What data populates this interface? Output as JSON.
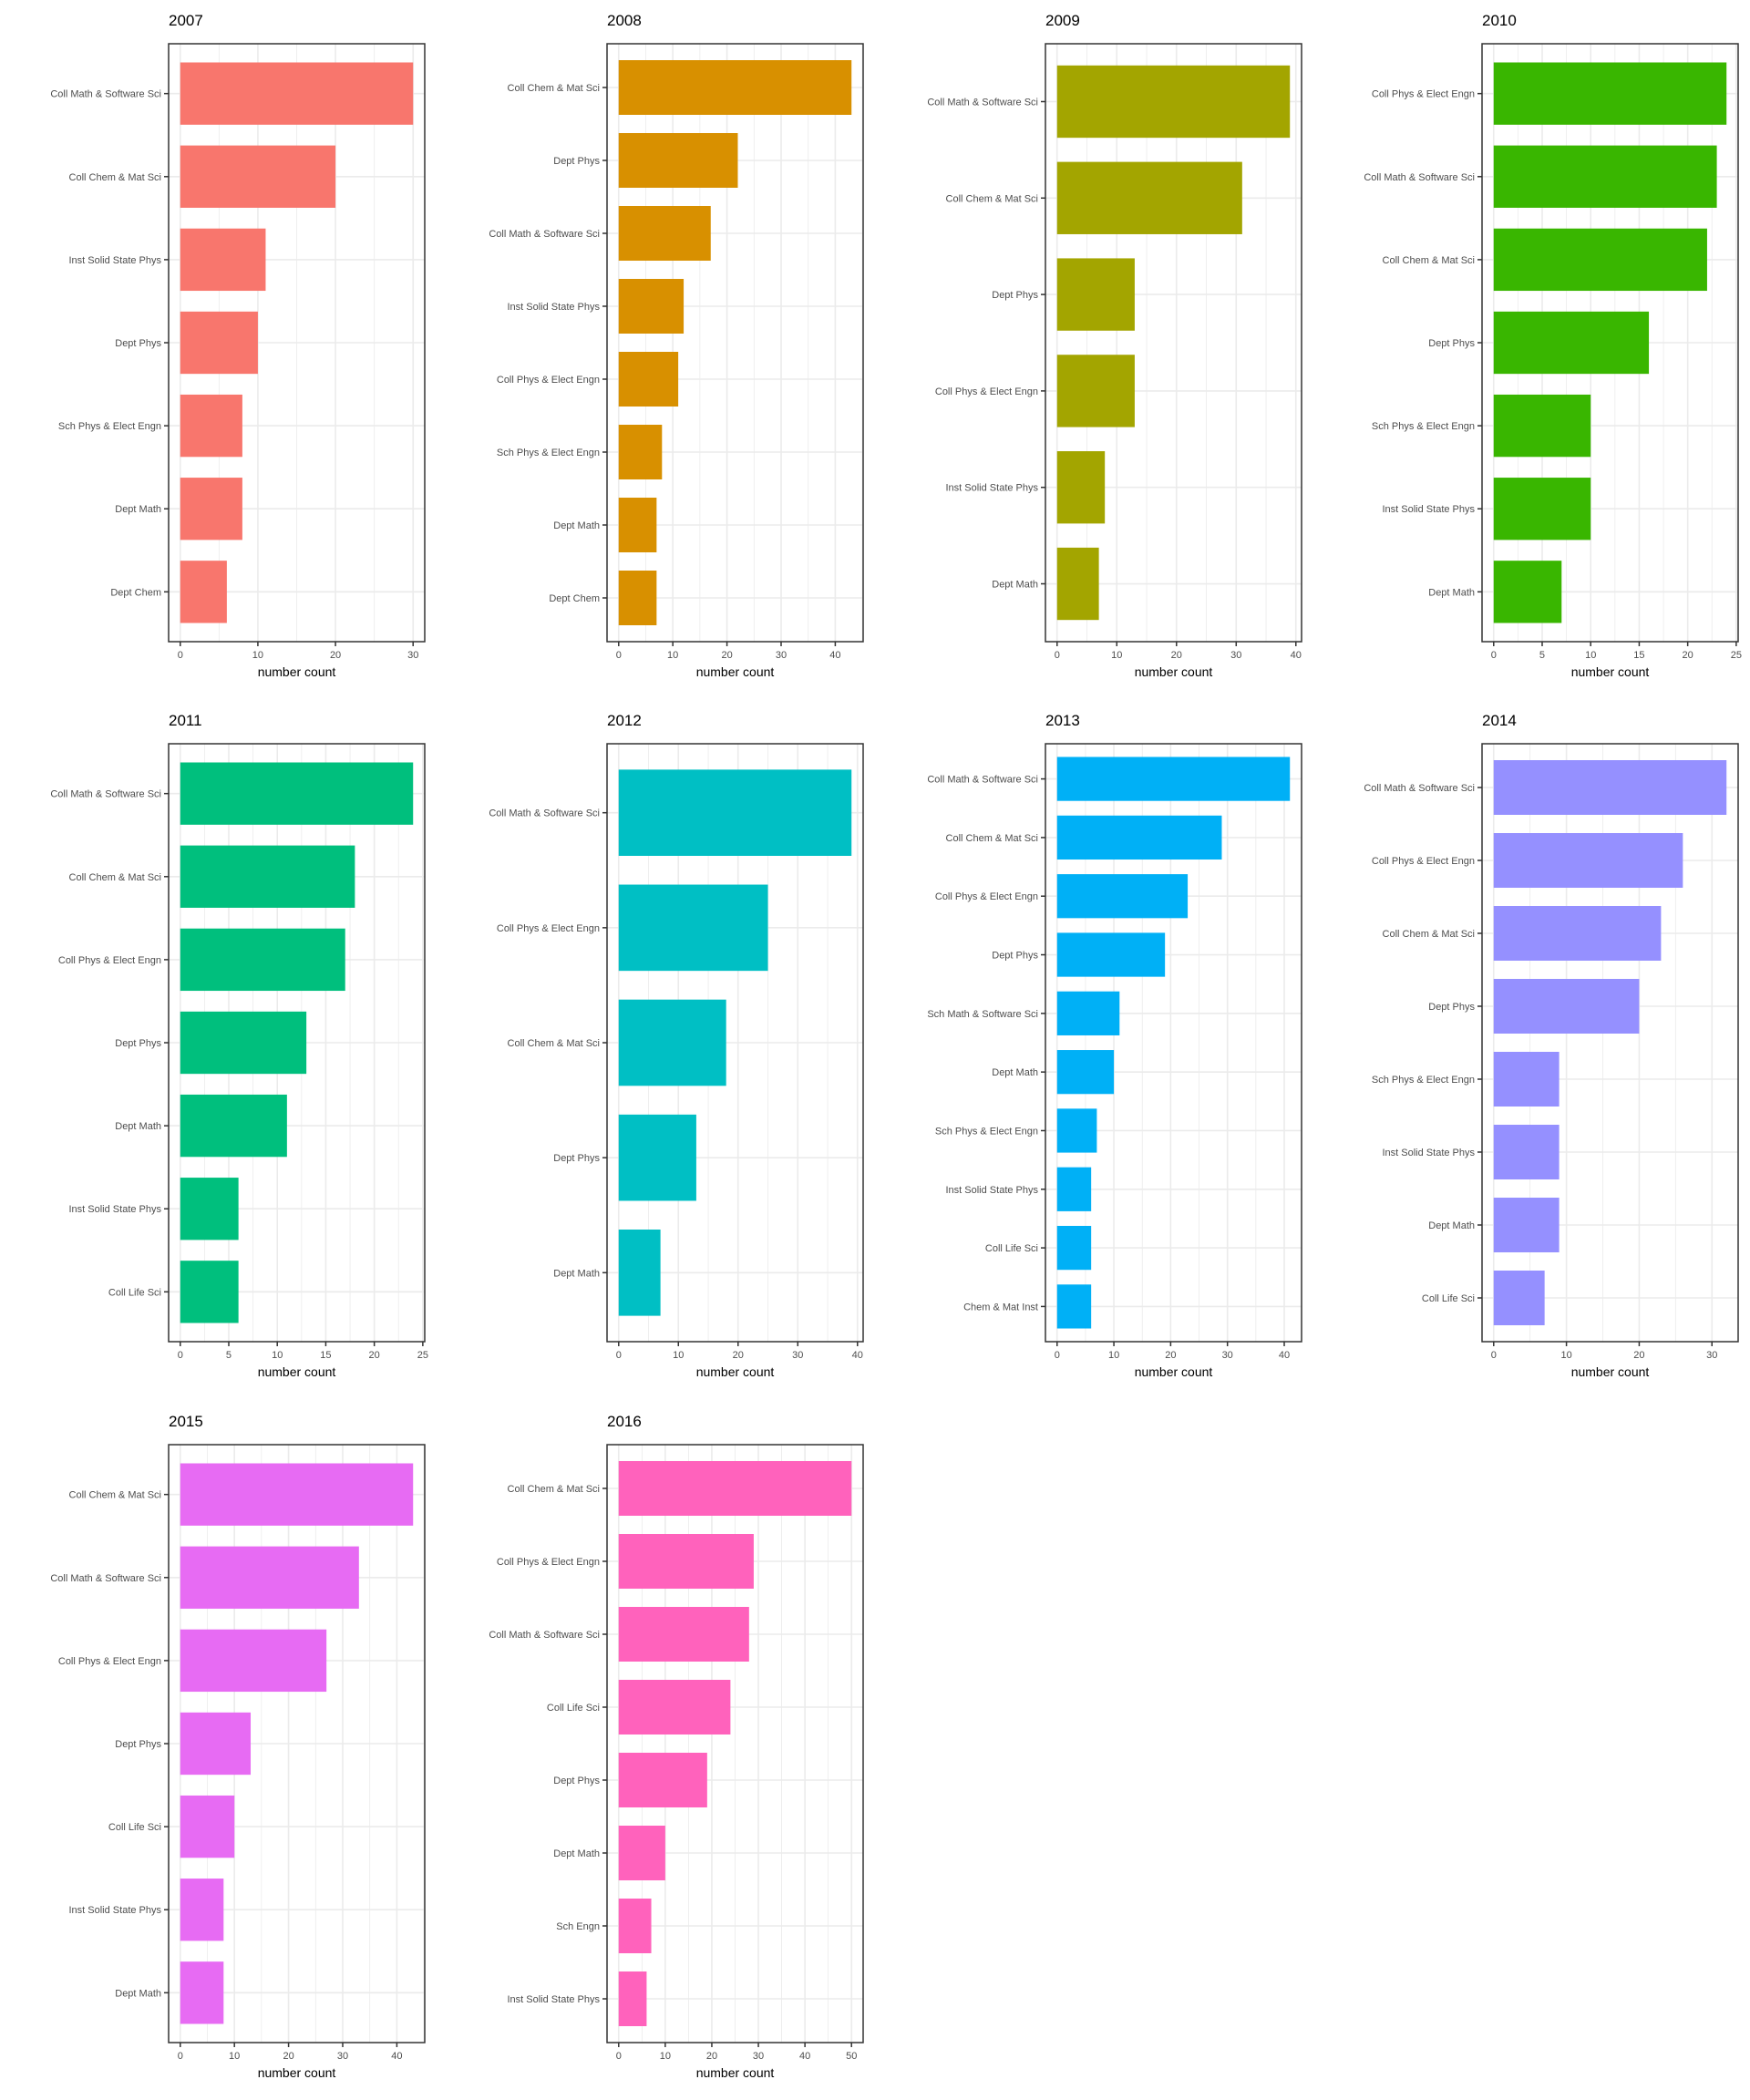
{
  "chart_data": [
    {
      "type": "bar",
      "orientation": "horizontal",
      "title": "2007",
      "xlabel": "number count",
      "color": "#F8766D",
      "xticks": [
        0,
        10,
        20,
        30
      ],
      "categories": [
        "Coll Math & Software Sci",
        "Coll Chem & Mat Sci",
        "Inst Solid State Phys",
        "Dept Phys",
        "Sch Phys & Elect Engn",
        "Dept Math",
        "Dept Chem"
      ],
      "values": [
        30,
        20,
        11,
        10,
        8,
        8,
        6
      ]
    },
    {
      "type": "bar",
      "orientation": "horizontal",
      "title": "2008",
      "xlabel": "number count",
      "color": "#D89000",
      "xticks": [
        0,
        10,
        20,
        30,
        40
      ],
      "categories": [
        "Coll Chem & Mat Sci",
        "Dept Phys",
        "Coll Math & Software Sci",
        "Inst Solid State Phys",
        "Coll Phys & Elect Engn",
        "Sch Phys & Elect Engn",
        "Dept Math",
        "Dept Chem"
      ],
      "values": [
        43,
        22,
        17,
        12,
        11,
        8,
        7,
        7
      ]
    },
    {
      "type": "bar",
      "orientation": "horizontal",
      "title": "2009",
      "xlabel": "number count",
      "color": "#A3A500",
      "xticks": [
        0,
        10,
        20,
        30,
        40
      ],
      "categories": [
        "Coll Math & Software Sci",
        "Coll Chem & Mat Sci",
        "Dept Phys",
        "Coll Phys & Elect Engn",
        "Inst Solid State Phys",
        "Dept Math"
      ],
      "values": [
        39,
        31,
        13,
        13,
        8,
        7
      ]
    },
    {
      "type": "bar",
      "orientation": "horizontal",
      "title": "2010",
      "xlabel": "number count",
      "color": "#39B600",
      "xticks": [
        0,
        5,
        10,
        15,
        20,
        25
      ],
      "categories": [
        "Coll Phys & Elect Engn",
        "Coll Math & Software Sci",
        "Coll Chem & Mat Sci",
        "Dept Phys",
        "Sch Phys & Elect Engn",
        "Inst Solid State Phys",
        "Dept Math"
      ],
      "values": [
        24,
        23,
        22,
        16,
        10,
        10,
        7
      ]
    },
    {
      "type": "bar",
      "orientation": "horizontal",
      "title": "2011",
      "xlabel": "number count",
      "color": "#00BF7D",
      "xticks": [
        0,
        5,
        10,
        15,
        20,
        25
      ],
      "categories": [
        "Coll Math & Software Sci",
        "Coll Chem & Mat Sci",
        "Coll Phys & Elect Engn",
        "Dept Phys",
        "Dept Math",
        "Inst Solid State Phys",
        "Coll Life Sci"
      ],
      "values": [
        24,
        18,
        17,
        13,
        11,
        6,
        6
      ]
    },
    {
      "type": "bar",
      "orientation": "horizontal",
      "title": "2012",
      "xlabel": "number count",
      "color": "#00BFC4",
      "xticks": [
        0,
        10,
        20,
        30,
        40
      ],
      "categories": [
        "Coll Math & Software Sci",
        "Coll Phys & Elect Engn",
        "Coll Chem & Mat Sci",
        "Dept Phys",
        "Dept Math"
      ],
      "values": [
        39,
        25,
        18,
        13,
        7
      ]
    },
    {
      "type": "bar",
      "orientation": "horizontal",
      "title": "2013",
      "xlabel": "number count",
      "color": "#00B0F6",
      "xticks": [
        0,
        10,
        20,
        30,
        40
      ],
      "categories": [
        "Coll Math & Software Sci",
        "Coll Chem & Mat Sci",
        "Coll Phys & Elect Engn",
        "Dept Phys",
        "Sch Math & Software Sci",
        "Dept Math",
        "Sch Phys & Elect Engn",
        "Inst Solid State Phys",
        "Coll Life Sci",
        "Chem & Mat Inst"
      ],
      "values": [
        41,
        29,
        23,
        19,
        11,
        10,
        7,
        6,
        6,
        6
      ]
    },
    {
      "type": "bar",
      "orientation": "horizontal",
      "title": "2014",
      "xlabel": "number count",
      "color": "#9590FF",
      "xticks": [
        0,
        10,
        20,
        30
      ],
      "categories": [
        "Coll Math & Software Sci",
        "Coll Phys & Elect Engn",
        "Coll Chem & Mat Sci",
        "Dept Phys",
        "Sch Phys & Elect Engn",
        "Inst Solid State Phys",
        "Dept Math",
        "Coll Life Sci"
      ],
      "values": [
        32,
        26,
        23,
        20,
        9,
        9,
        9,
        7
      ]
    },
    {
      "type": "bar",
      "orientation": "horizontal",
      "title": "2015",
      "xlabel": "number count",
      "color": "#E76BF3",
      "xticks": [
        0,
        10,
        20,
        30,
        40
      ],
      "categories": [
        "Coll Chem & Mat Sci",
        "Coll Math & Software Sci",
        "Coll Phys & Elect Engn",
        "Dept Phys",
        "Coll Life Sci",
        "Inst Solid State Phys",
        "Dept Math"
      ],
      "values": [
        43,
        33,
        27,
        13,
        10,
        8,
        8
      ]
    },
    {
      "type": "bar",
      "orientation": "horizontal",
      "title": "2016",
      "xlabel": "number count",
      "color": "#FF62BC",
      "xticks": [
        0,
        10,
        20,
        30,
        40,
        50
      ],
      "categories": [
        "Coll Chem & Mat Sci",
        "Coll Phys & Elect Engn",
        "Coll Math & Software Sci",
        "Coll Life Sci",
        "Dept Phys",
        "Dept Math",
        "Sch Engn",
        "Inst Solid State Phys"
      ],
      "values": [
        50,
        29,
        28,
        24,
        19,
        10,
        7,
        6
      ]
    }
  ]
}
